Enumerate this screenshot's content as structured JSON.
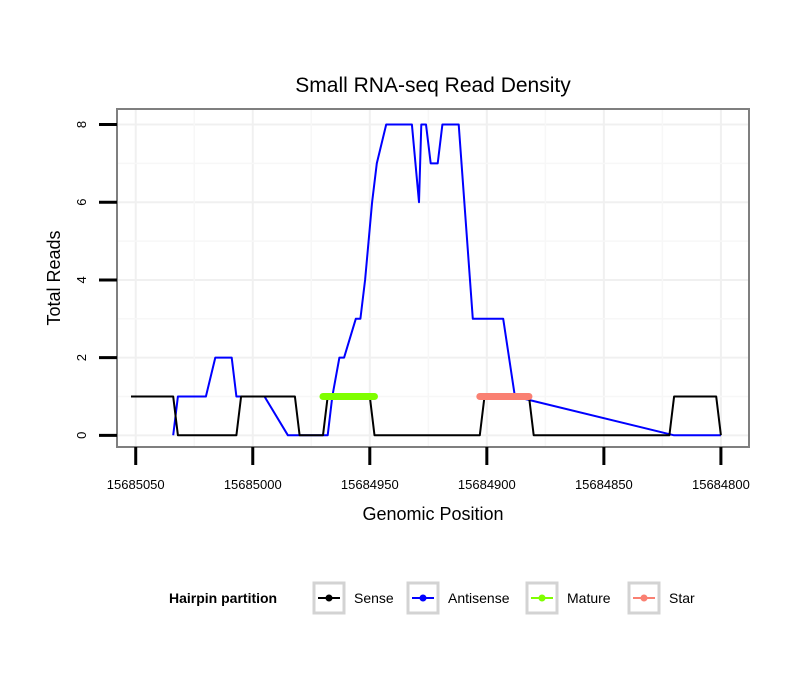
{
  "chart_data": {
    "type": "line",
    "title": "Small RNA-seq Read Density",
    "xlabel": "Genomic Position",
    "ylabel": "Total Reads",
    "xlim": [
      15685058,
      15684788
    ],
    "x_reversed": true,
    "ylim": [
      -0.3,
      8.4
    ],
    "x_ticks": [
      15685050,
      15685000,
      15684950,
      15684900,
      15684850,
      15684800
    ],
    "x_tick_labels": [
      "15685050",
      "15685000",
      "15684950",
      "15684900",
      "15684850",
      "15684800"
    ],
    "y_ticks": [
      0,
      2,
      4,
      6,
      8
    ],
    "y_tick_labels": [
      "0",
      "2",
      "4",
      "6",
      "8"
    ],
    "grid": true,
    "legend": {
      "title": "Hairpin partition",
      "position": "bottom",
      "entries": [
        {
          "name": "Sense",
          "color": "#000000"
        },
        {
          "name": "Antisense",
          "color": "#0000ff"
        },
        {
          "name": "Mature",
          "color": "#7fff00"
        },
        {
          "name": "Star",
          "color": "#fa8072"
        }
      ]
    },
    "series": [
      {
        "name": "Sense",
        "color": "#000000",
        "x": [
          15685052,
          15685034,
          15685032,
          15685007,
          15685005,
          15684998,
          15684982,
          15684980,
          15684970,
          15684968,
          15684950,
          15684948,
          15684903,
          15684901,
          15684882,
          15684880,
          15684822,
          15684820,
          15684802,
          15684800
        ],
        "y": [
          1,
          1,
          0,
          0,
          1,
          1,
          1,
          0,
          0,
          1,
          1,
          0,
          0,
          1,
          1,
          0,
          0,
          1,
          1,
          0
        ]
      },
      {
        "name": "Antisense",
        "color": "#0000ff",
        "x": [
          15685034,
          15685032,
          15685020,
          15685016,
          15685009,
          15685007,
          15684995,
          15684985,
          15684968,
          15684966,
          15684963,
          15684961,
          15684956,
          15684954,
          15684952,
          15684949,
          15684947,
          15684943,
          15684941,
          15684939,
          15684935,
          15684932,
          15684929,
          15684928,
          15684926,
          15684924,
          15684921,
          15684919,
          15684912,
          15684906,
          15684904,
          15684899,
          15684897,
          15684893,
          15684888,
          15684820,
          15684818,
          15684800
        ],
        "y": [
          0,
          1,
          1,
          2,
          2,
          1,
          1,
          0,
          0,
          1,
          2,
          2,
          3,
          3,
          4,
          6,
          7,
          8,
          8,
          8,
          8,
          8,
          6,
          8,
          8,
          7,
          7,
          8,
          8,
          3,
          3,
          3,
          3,
          3,
          1,
          0,
          0,
          0
        ]
      },
      {
        "name": "Mature",
        "color": "#7fff00",
        "segment": [
          15684970,
          15684948
        ],
        "y": 1
      },
      {
        "name": "Star",
        "color": "#fa8072",
        "segment": [
          15684903,
          15684882
        ],
        "y": 1
      }
    ]
  }
}
